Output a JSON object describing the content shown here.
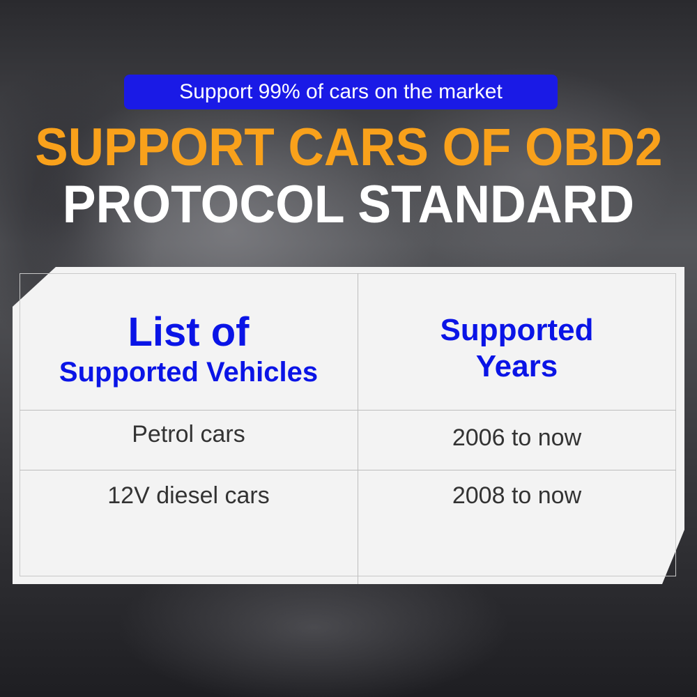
{
  "badge": "Support 99% of cars on the market",
  "title_line1": "SUPPORT CARS OF OBD2",
  "title_line2": "PROTOCOL STANDARD",
  "colors": {
    "badge": "#1a1ae6",
    "title_accent": "#f9a11b",
    "header_text": "#0a14e6"
  },
  "table": {
    "headers": [
      {
        "line1": "List of",
        "line2": "Supported Vehicles"
      },
      {
        "line1": "Supported",
        "line2": "Years"
      }
    ],
    "rows": [
      [
        "Petrol cars",
        "2006 to now"
      ],
      [
        "12V diesel cars",
        "2008 to now"
      ]
    ]
  }
}
